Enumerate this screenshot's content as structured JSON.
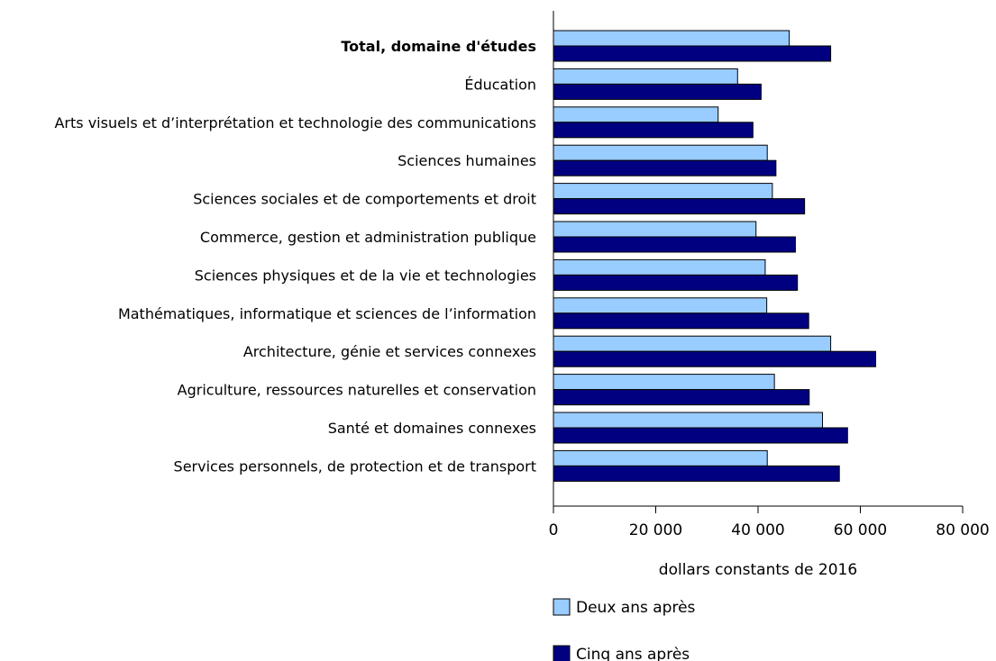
{
  "chart_data": {
    "type": "bar",
    "orientation": "horizontal",
    "categories": [
      "Total, domaine d'études",
      "Éducation",
      "Arts visuels et d’interprétation et technologie des communications",
      "Sciences humaines",
      "Sciences sociales et de comportements et droit",
      "Commerce, gestion et administration publique",
      "Sciences physiques et de la vie et technologies",
      "Mathématiques, informatique et sciences de l’information",
      "Architecture, génie et services connexes",
      "Agriculture, ressources naturelles et conservation",
      "Santé et domaines connexes",
      "Services personnels, de protection et de transport"
    ],
    "bold_categories": [
      "Total, domaine d'études"
    ],
    "series": [
      {
        "name": "Deux ans après",
        "color": "#99ccff",
        "values": [
          46100,
          36000,
          32200,
          41800,
          42800,
          39600,
          41400,
          41700,
          54200,
          43200,
          52600,
          41800
        ]
      },
      {
        "name": "Cinq ans après",
        "color": "#000080",
        "values": [
          54200,
          40600,
          39000,
          43500,
          49100,
          47300,
          47700,
          49900,
          63000,
          50000,
          57500,
          55900
        ]
      }
    ],
    "xlabel": "dollars constants de 2016",
    "xlim": [
      0,
      80000
    ],
    "xticks": [
      0,
      20000,
      40000,
      60000,
      80000
    ],
    "xtick_labels": [
      "0",
      "20 000",
      "40 000",
      "60 000",
      "80 000"
    ],
    "legend_position": "bottom",
    "grid": false
  }
}
